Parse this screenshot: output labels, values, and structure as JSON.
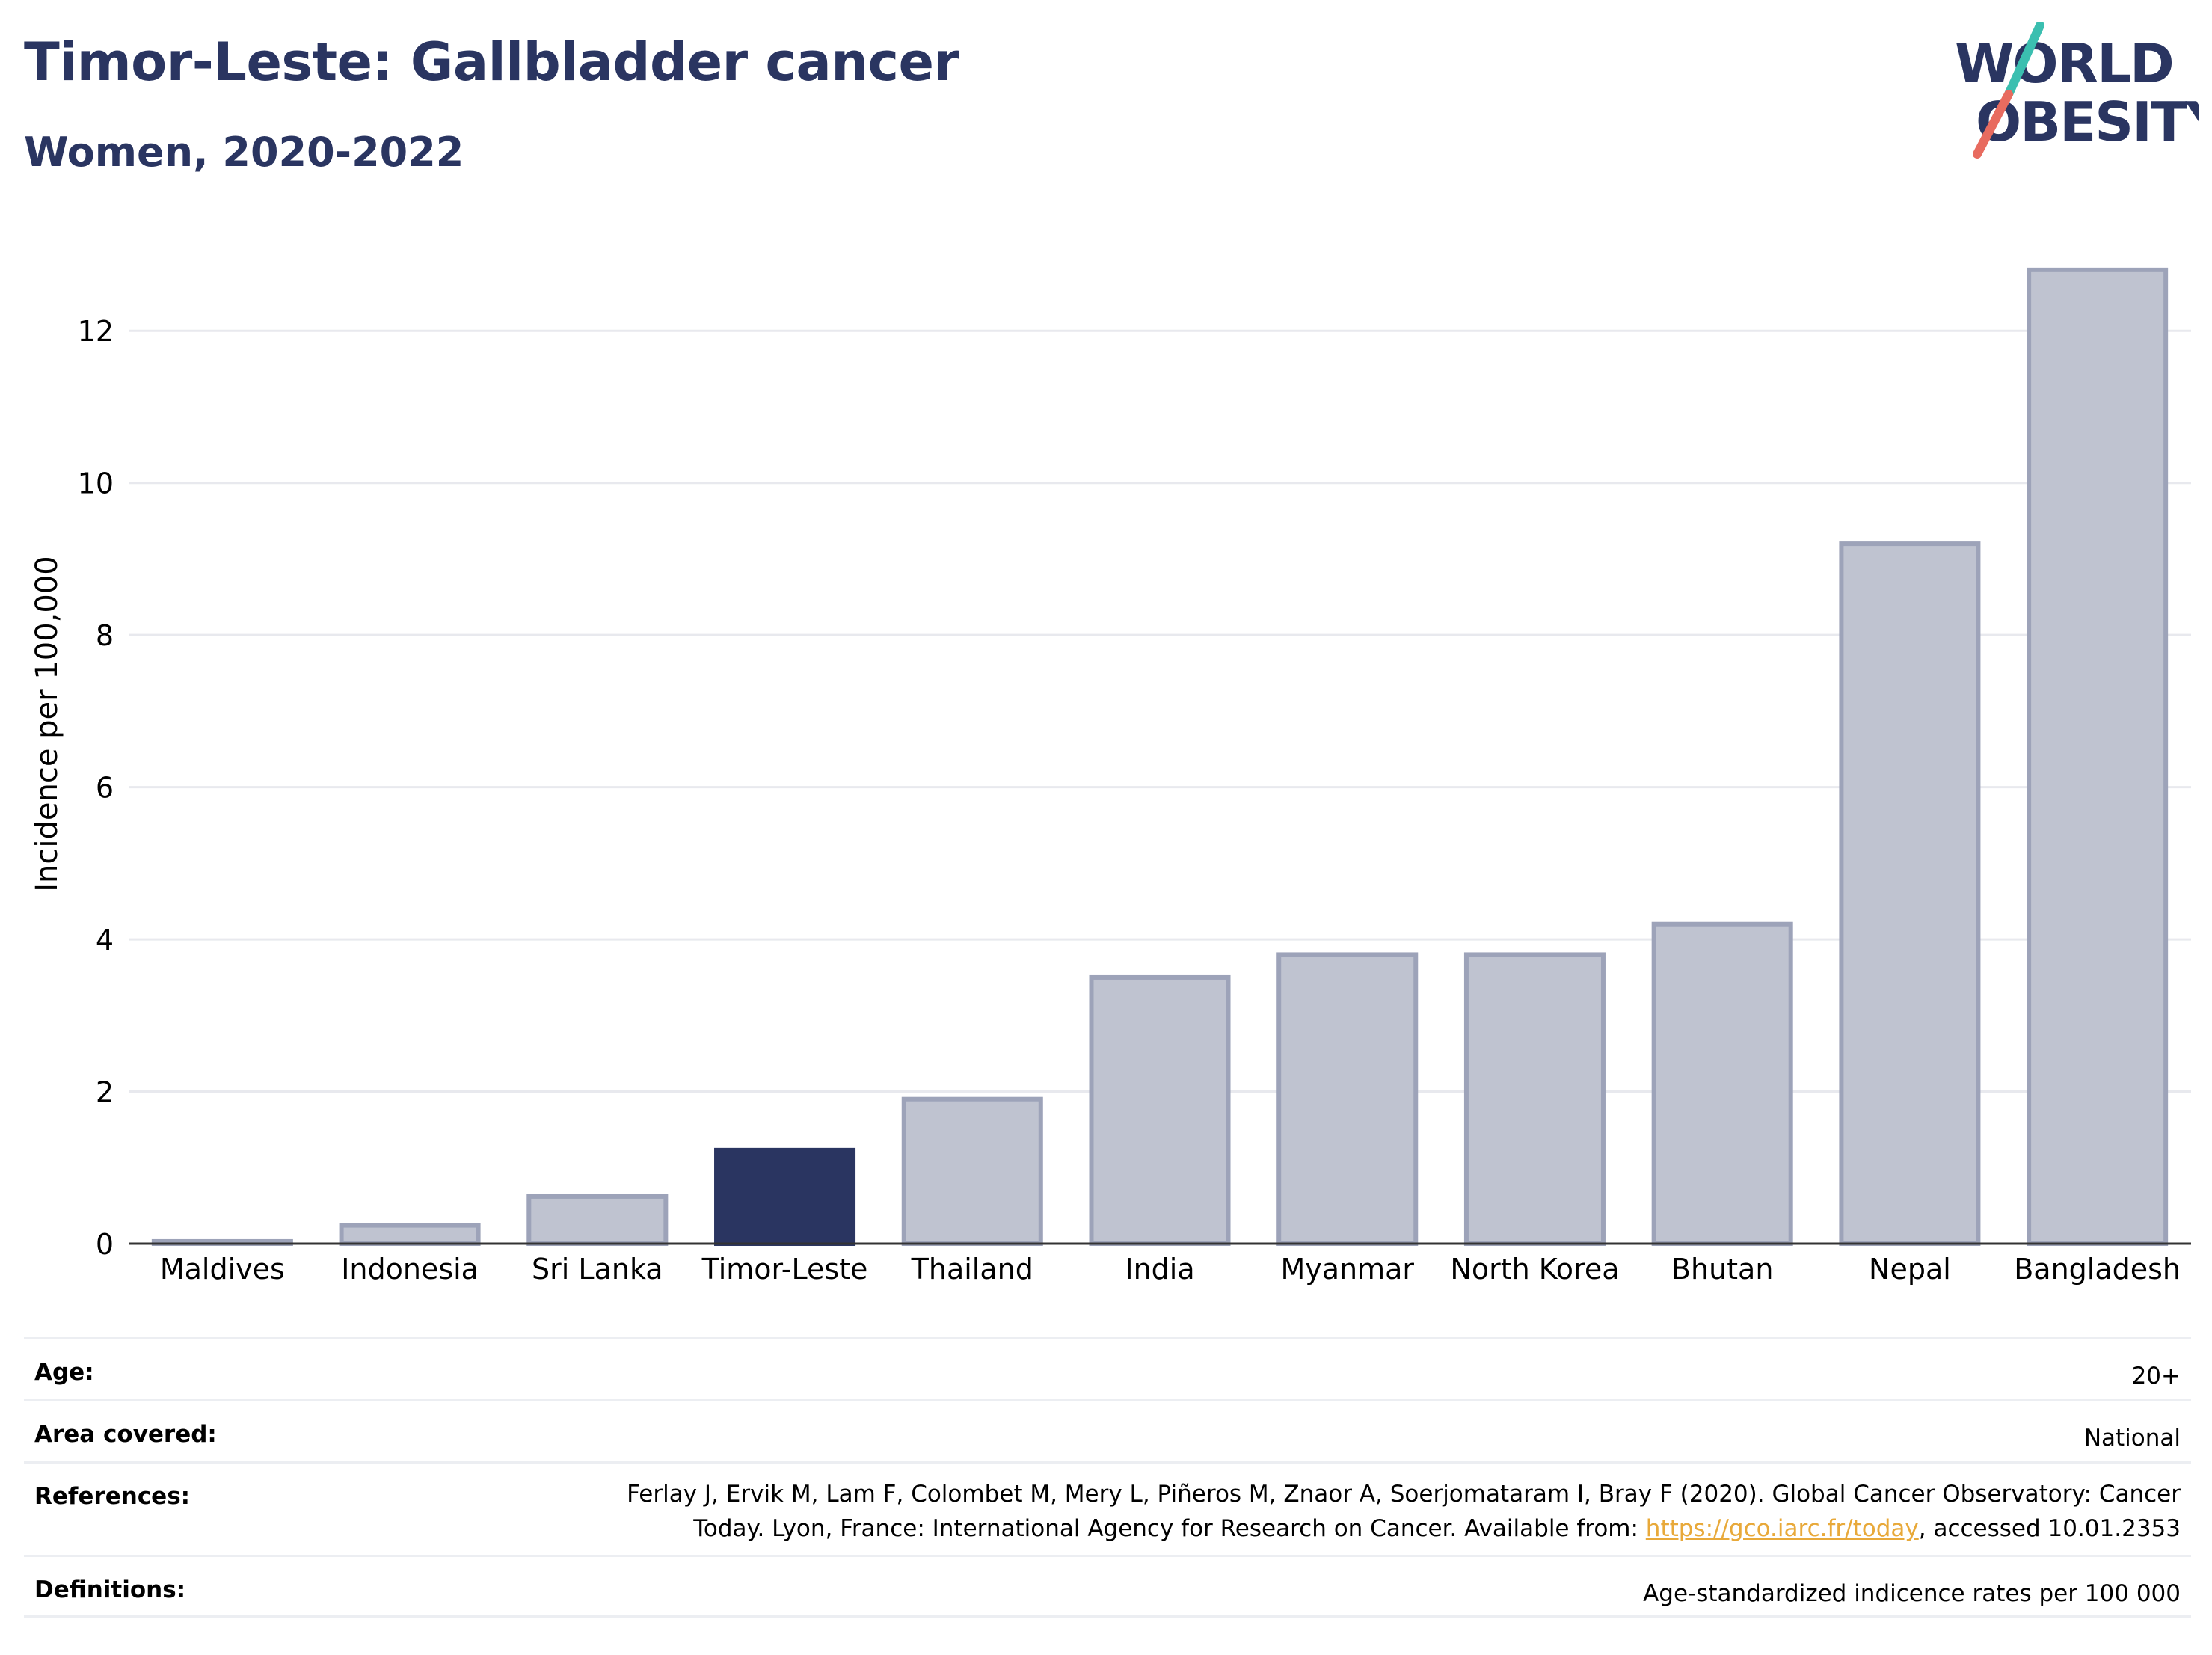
{
  "header": {
    "title": "Timor-Leste: Gallbladder cancer",
    "subtitle": "Women, 2020-2022"
  },
  "logo": {
    "line1": "WORLD",
    "line2": "OBESITY",
    "color_text": "#2a3561",
    "color_slash_top": "#3bbfb0",
    "color_slash_bottom": "#e86b5f"
  },
  "chart_data": {
    "type": "bar",
    "categories": [
      "Maldives",
      "Indonesia",
      "Sri Lanka",
      "Timor-Leste",
      "Thailand",
      "India",
      "Myanmar",
      "North Korea",
      "Bhutan",
      "Nepal",
      "Bangladesh"
    ],
    "values": [
      0.03,
      0.24,
      0.62,
      1.23,
      1.9,
      3.5,
      3.8,
      3.8,
      4.2,
      9.2,
      12.8
    ],
    "highlight": "Timor-Leste",
    "ylabel": "Incidence per 100,000",
    "ylim": [
      0,
      13.3
    ],
    "yticks": [
      "0",
      "2",
      "4",
      "6",
      "8",
      "10",
      "12"
    ],
    "grid": true,
    "colors": {
      "bar": "#bfc3d0",
      "bar_border": "#9da3b9",
      "highlight": "#2a3561"
    }
  },
  "info": {
    "age_label": "Age:",
    "age_value": "20+",
    "area_label": "Area covered:",
    "area_value": "National",
    "references_label": "References:",
    "references_line1": "Ferlay J, Ervik M, Lam F, Colombet M, Mery L, Piñeros M, Znaor A, Soerjomataram I, Bray F (2020). Global Cancer Observatory: Cancer",
    "references_line2_pre": "Today. Lyon, France: International Agency for Research on Cancer. Available from: ",
    "references_link": "https://gco.iarc.fr/today",
    "references_line2_post": ", accessed 10.01.2353",
    "definitions_label": "Definitions:",
    "definitions_value": "Age-standardized indicence rates per 100 000"
  }
}
